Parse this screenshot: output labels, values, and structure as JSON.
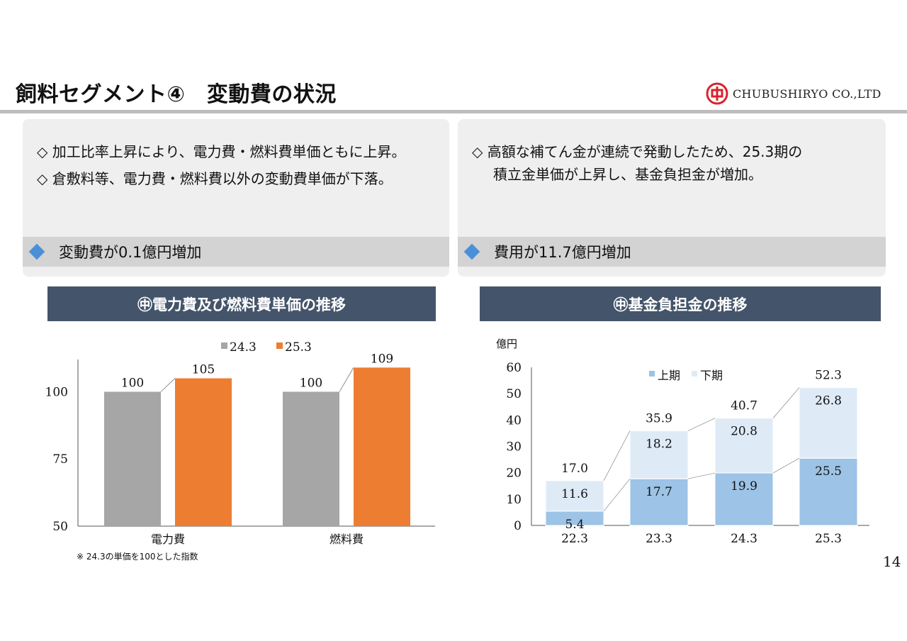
{
  "header": {
    "title": "飼料セグメント④　変動費の状況",
    "company": "CHUBUSHIRYO CO.,LTD"
  },
  "left_panel": {
    "bullets": [
      "◇ 加工比率上昇により、電力費・燃料費単価ともに上昇。",
      "◇ 倉敷料等、電力費・燃料費以外の変動費単価が下落。"
    ],
    "summary": "変動費が0.1億円増加"
  },
  "right_panel": {
    "bullets": [
      "◇ 高額な補てん金が連続で発動したため、25.3期の",
      "積立金単価が上昇し、基金負担金が増加。"
    ],
    "summary": "費用が11.7億円増加"
  },
  "left_chart_title": "㊥電力費及び燃料費単価の推移",
  "right_chart_title": "㊥基金負担金の推移",
  "note": "※ 24.3の単価を100とした指数",
  "page_number": "14",
  "colors": {
    "series_gray": "#a6a6a6",
    "series_orange": "#ed7d31",
    "upper_half": "#9dc3e6",
    "lower_half": "#deebf7",
    "header_bg": "#44546a",
    "diamond": "#4a90d9"
  },
  "chart_data": [
    {
      "type": "bar",
      "categories": [
        "電力費",
        "燃料費"
      ],
      "series": [
        {
          "name": "24.3",
          "values": [
            100,
            100
          ]
        },
        {
          "name": "25.3",
          "values": [
            105,
            109
          ]
        }
      ],
      "ylim": [
        50,
        112
      ],
      "yticks": [
        50,
        75,
        100
      ],
      "legend": "top-center"
    },
    {
      "type": "bar",
      "stacked": true,
      "unit": "億円",
      "categories": [
        "22.3",
        "23.3",
        "24.3",
        "25.3"
      ],
      "series": [
        {
          "name": "上期",
          "values": [
            5.4,
            17.7,
            19.9,
            25.5
          ]
        },
        {
          "name": "下期",
          "values": [
            11.6,
            18.2,
            20.8,
            26.8
          ]
        }
      ],
      "totals": [
        17.0,
        35.9,
        40.7,
        52.3
      ],
      "ylim": [
        0,
        60
      ],
      "yticks": [
        0,
        10,
        20,
        30,
        40,
        50,
        60
      ],
      "legend": "top-right"
    }
  ]
}
